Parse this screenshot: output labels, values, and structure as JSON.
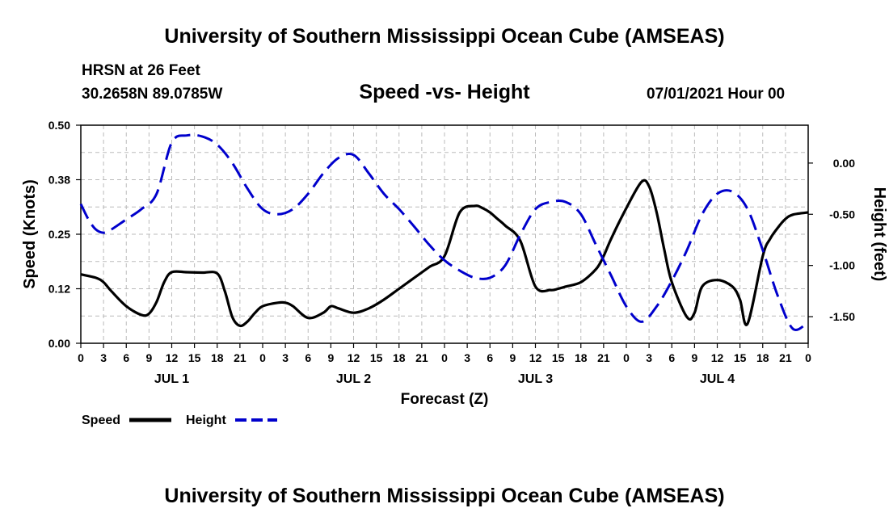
{
  "header": {
    "title": "University of Southern Mississippi Ocean Cube (AMSEAS)",
    "station": "HRSN at 26 Feet",
    "coords": "30.2658N  89.0785W",
    "subtitle": "Speed -vs- Height",
    "datetime": "07/01/2021 Hour 00"
  },
  "footer": {
    "title": "University of Southern Mississippi Ocean Cube (AMSEAS)"
  },
  "colors": {
    "speed": "#000000",
    "height": "#0000cc",
    "grid": "#bbbbbb"
  },
  "chart_data": {
    "type": "line",
    "title": "Speed -vs- Height",
    "xlabel": "Forecast (Z)",
    "ylabel_left": "Speed (Knots)",
    "ylabel_right": "Height (feet)",
    "x_unit": "hours since 07/01/2021 00Z",
    "xlim": [
      0,
      96
    ],
    "ylim_left": [
      0,
      0.5
    ],
    "ylim_right": [
      -1.76,
      0.37
    ],
    "x_ticks": [
      0,
      3,
      6,
      9,
      12,
      15,
      18,
      21,
      24,
      27,
      30,
      33,
      36,
      39,
      42,
      45,
      48,
      51,
      54,
      57,
      60,
      63,
      66,
      69,
      72,
      75,
      78,
      81,
      84,
      87,
      90,
      93,
      96
    ],
    "x_tick_labels": [
      "0",
      "3",
      "6",
      "9",
      "12",
      "15",
      "18",
      "21",
      "0",
      "3",
      "6",
      "9",
      "12",
      "15",
      "18",
      "21",
      "0",
      "3",
      "6",
      "9",
      "12",
      "15",
      "18",
      "21",
      "0",
      "3",
      "6",
      "9",
      "12",
      "15",
      "18",
      "21",
      "0"
    ],
    "day_labels": [
      {
        "label": "JUL 1",
        "x": 12
      },
      {
        "label": "JUL 2",
        "x": 36
      },
      {
        "label": "JUL 3",
        "x": 60
      },
      {
        "label": "JUL 4",
        "x": 84
      }
    ],
    "y_left_ticks": [
      0,
      0.125,
      0.25,
      0.375,
      0.5
    ],
    "y_left_tick_labels": [
      "0.00",
      "0.12",
      "0.25",
      "0.38",
      "0.50"
    ],
    "y_right_ticks": [
      0,
      -0.5,
      -1.0,
      -1.5
    ],
    "y_right_tick_labels": [
      "0.00",
      "-0.50",
      "-1.00",
      "-1.50"
    ],
    "legend": [
      {
        "name": "Speed",
        "style": "solid"
      },
      {
        "name": "Height",
        "style": "dashed"
      }
    ],
    "series": [
      {
        "name": "Speed",
        "axis": "left",
        "style": "solid",
        "x": [
          0,
          2,
          3,
          4,
          6,
          8,
          9,
          10,
          11,
          12,
          14,
          16,
          18,
          19,
          20,
          21,
          22,
          23,
          24,
          26,
          27,
          28,
          30,
          32,
          33,
          34,
          36,
          38,
          40,
          42,
          44,
          46,
          48,
          50,
          52,
          53,
          54,
          55,
          56,
          58,
          60,
          62,
          63,
          64,
          66,
          68,
          69,
          70,
          72,
          74,
          75,
          76,
          77,
          78,
          80,
          81,
          82,
          84,
          86,
          87,
          88,
          90,
          91,
          92,
          93,
          94,
          96
        ],
        "y": [
          0.158,
          0.15,
          0.14,
          0.12,
          0.085,
          0.065,
          0.068,
          0.095,
          0.14,
          0.163,
          0.163,
          0.162,
          0.16,
          0.12,
          0.06,
          0.04,
          0.05,
          0.07,
          0.085,
          0.093,
          0.093,
          0.085,
          0.058,
          0.07,
          0.085,
          0.08,
          0.07,
          0.08,
          0.1,
          0.125,
          0.15,
          0.175,
          0.2,
          0.3,
          0.315,
          0.31,
          0.3,
          0.285,
          0.27,
          0.235,
          0.13,
          0.122,
          0.125,
          0.13,
          0.14,
          0.17,
          0.2,
          0.24,
          0.31,
          0.37,
          0.36,
          0.3,
          0.215,
          0.14,
          0.06,
          0.07,
          0.13,
          0.145,
          0.13,
          0.1,
          0.045,
          0.2,
          0.24,
          0.265,
          0.285,
          0.295,
          0.3
        ]
      },
      {
        "name": "Height",
        "axis": "right",
        "style": "dashed",
        "x": [
          0,
          1,
          2,
          3,
          4,
          6,
          8,
          10,
          12,
          14,
          16,
          18,
          20,
          22,
          24,
          26,
          28,
          30,
          32,
          34,
          36,
          38,
          40,
          42,
          44,
          46,
          48,
          50,
          52,
          54,
          56,
          58,
          60,
          62,
          64,
          66,
          68,
          70,
          72,
          74,
          76,
          78,
          80,
          82,
          84,
          86,
          88,
          90,
          92,
          94,
          96
        ],
        "y": [
          -0.4,
          -0.55,
          -0.65,
          -0.68,
          -0.65,
          -0.55,
          -0.45,
          -0.3,
          0.2,
          0.27,
          0.26,
          0.18,
          0.0,
          -0.25,
          -0.45,
          -0.5,
          -0.45,
          -0.3,
          -0.1,
          0.05,
          0.08,
          -0.1,
          -0.3,
          -0.45,
          -0.62,
          -0.8,
          -0.95,
          -1.05,
          -1.12,
          -1.12,
          -1.0,
          -0.7,
          -0.45,
          -0.38,
          -0.38,
          -0.5,
          -0.8,
          -1.1,
          -1.4,
          -1.55,
          -1.4,
          -1.15,
          -0.85,
          -0.5,
          -0.3,
          -0.28,
          -0.45,
          -0.85,
          -1.3,
          -1.62,
          -1.55
        ]
      }
    ]
  }
}
